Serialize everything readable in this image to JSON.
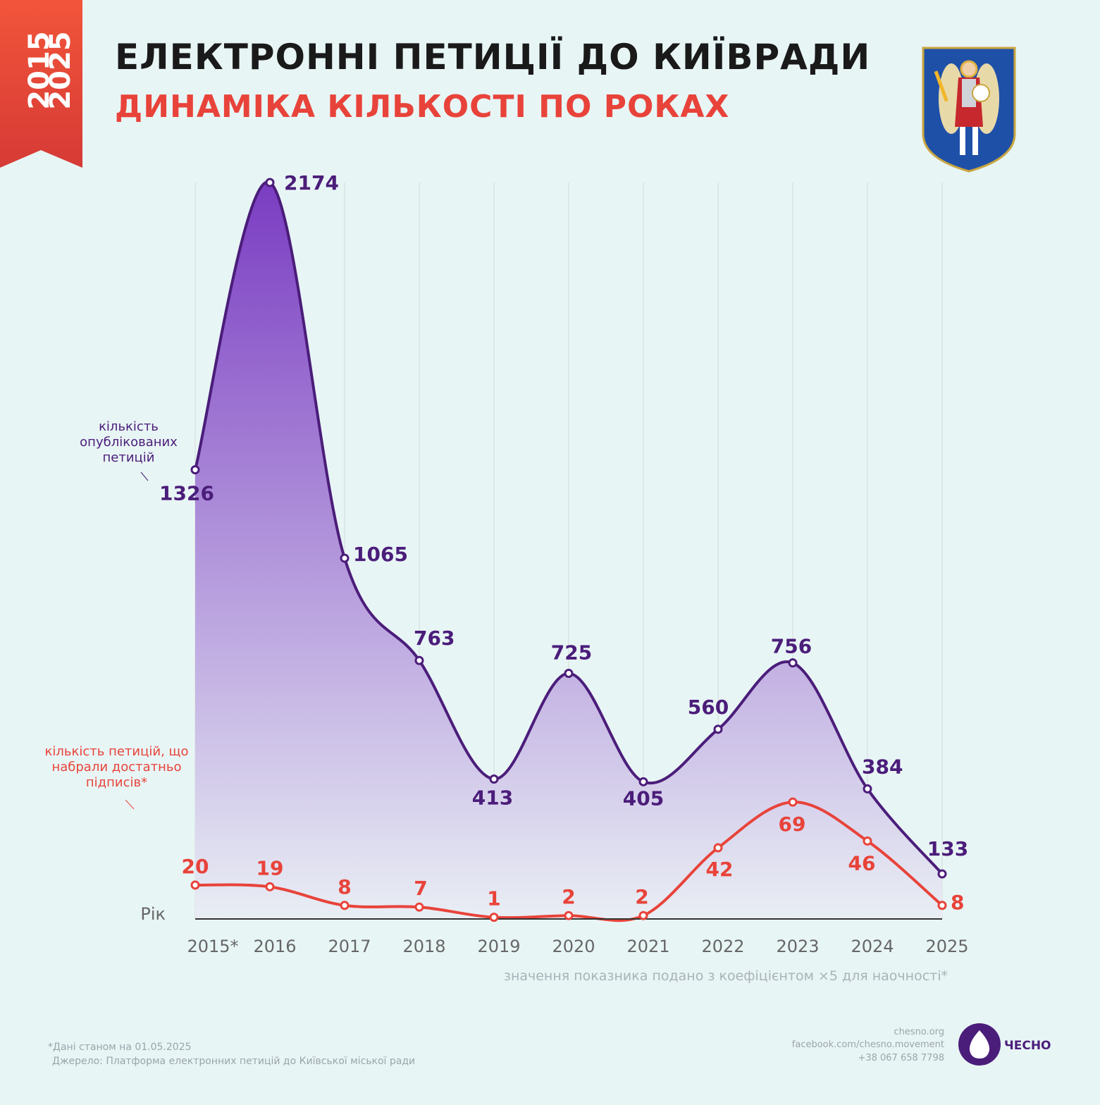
{
  "header": {
    "years": [
      "2015",
      "2025"
    ],
    "title": "ЕЛЕКТРОННІ ПЕТИЦІЇ ДО КИЇВРАДИ",
    "subtitle": "ДИНАМІКА КІЛЬКОСТІ ПО РОКАХ"
  },
  "chart_data": {
    "type": "line",
    "area": true,
    "area_gradient": [
      "#7a3cc2",
      "#e9eef4"
    ],
    "x_label": "Рік",
    "categories": [
      "2015*",
      "2016",
      "2017",
      "2018",
      "2019",
      "2020",
      "2021",
      "2022",
      "2023",
      "2024",
      "2025"
    ],
    "series": [
      {
        "name": "кількість опублікованих петицій",
        "color": "#4b1d7a",
        "values": [
          1326,
          2174,
          1065,
          763,
          413,
          725,
          405,
          560,
          756,
          384,
          133
        ]
      },
      {
        "name": "кількість петицій, що набрали достатньо підписів*",
        "color": "#e8433a",
        "axis": "y2",
        "values": [
          20,
          19,
          8,
          7,
          1,
          2,
          2,
          42,
          69,
          46,
          8
        ]
      }
    ],
    "ylim": [
      0,
      2200
    ],
    "y2lim": [
      0,
      440
    ],
    "grid": true,
    "note": "значення показника подано з коефіцієнтом ×5 для наочності*"
  },
  "footer": {
    "footnote": "*Дані станом на 01.05.2025",
    "source": "Джерело: Платформа електронних петицій до Київської міської ради",
    "contacts": [
      "chesno.org",
      "facebook.com/chesno.movement",
      "+38 067 658 7798"
    ],
    "brand": "ЧЕСНО"
  }
}
